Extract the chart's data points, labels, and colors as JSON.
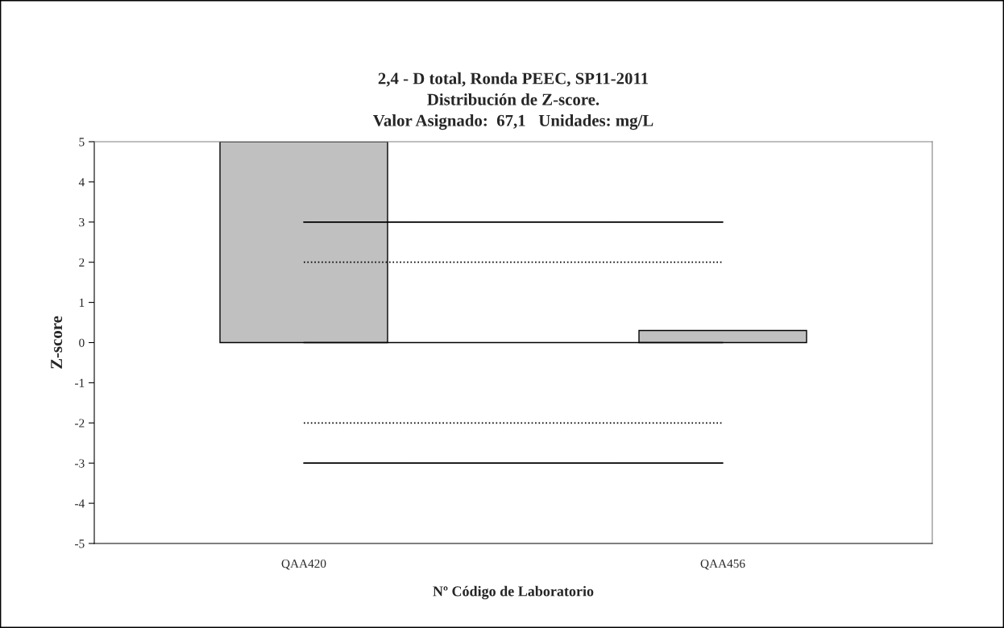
{
  "chart_data": {
    "type": "bar",
    "title": "2,4 - D total, Ronda PEEC, SP11-2011\nDistribución de Z-score.\nValor Asignado:  67,1   Unidades: mg/L",
    "xlabel": "Nº Código de Laboratorio",
    "ylabel": "Z-score",
    "categories": [
      "QAA420",
      "QAA456"
    ],
    "series": [
      {
        "color": "#c0c0c0",
        "values": [
          5,
          0.3
        ]
      },
      {
        "type": "line",
        "color": "#000000",
        "line_style": "solid",
        "values": [
          3,
          3
        ]
      },
      {
        "type": "line",
        "color": "#000000",
        "line_style": "dotted",
        "values": [
          2,
          2
        ]
      },
      {
        "type": "line",
        "color": "#000000",
        "line_style": "solid",
        "values": [
          0,
          0
        ]
      },
      {
        "type": "line",
        "color": "#000000",
        "line_style": "dotted",
        "values": [
          -2,
          -2
        ]
      },
      {
        "type": "line",
        "color": "#000000",
        "line_style": "solid",
        "values": [
          -3,
          -3
        ]
      }
    ],
    "ylim": [
      -5,
      5
    ],
    "yticks": [
      -5,
      -4,
      -3,
      -2,
      -1,
      0,
      1,
      2,
      3,
      4,
      5
    ],
    "grid": false,
    "legend": false
  }
}
